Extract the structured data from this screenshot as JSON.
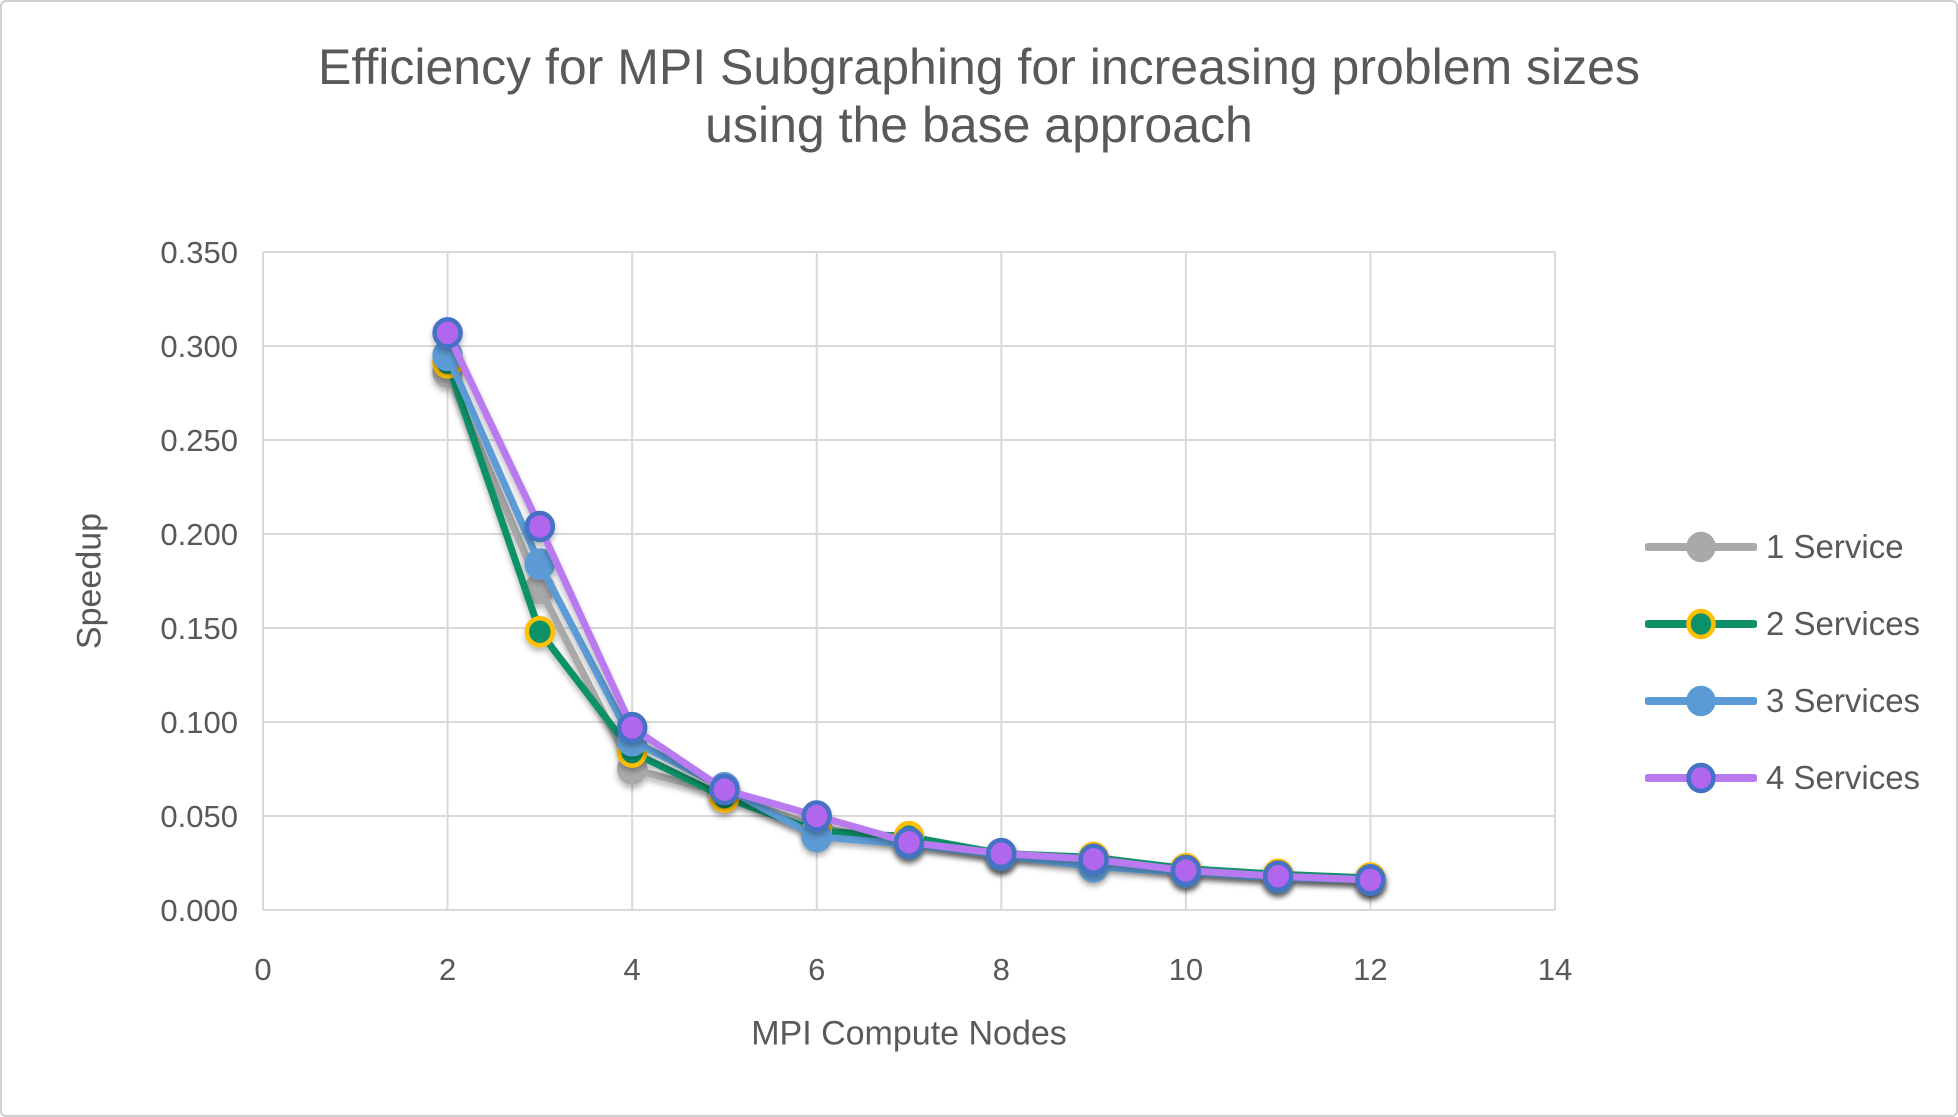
{
  "title_lines": [
    "Efficiency for MPI Subgraphing for increasing problem sizes",
    "using the base approach"
  ],
  "chart_data": {
    "type": "line",
    "title": "Efficiency for MPI Subgraphing for increasing problem sizes using the base approach",
    "xlabel": "MPI Compute Nodes",
    "ylabel": "Speedup",
    "xlim": [
      0,
      14
    ],
    "ylim": [
      0,
      0.35
    ],
    "grid": true,
    "legend_position": "right",
    "x_ticks": [
      "0",
      "2",
      "4",
      "6",
      "8",
      "10",
      "12",
      "14"
    ],
    "y_ticks": [
      "0.000",
      "0.050",
      "0.100",
      "0.150",
      "0.200",
      "0.250",
      "0.300",
      "0.350"
    ],
    "x": [
      2,
      3,
      4,
      5,
      6,
      7,
      8,
      9,
      10,
      11,
      12
    ],
    "series": [
      {
        "name": "1 Service",
        "line_color": "#a9a9a9",
        "marker_fill": "#a9a9a9",
        "marker_ring": "#a9a9a9",
        "values": [
          0.286,
          0.171,
          0.075,
          0.062,
          0.044,
          0.036,
          0.029,
          0.026,
          0.021,
          0.018,
          0.016
        ]
      },
      {
        "name": "2 Services",
        "line_color": "#0e9168",
        "marker_fill": "#0e9168",
        "marker_ring": "#ffc000",
        "values": [
          0.291,
          0.148,
          0.084,
          0.06,
          0.042,
          0.039,
          0.03,
          0.028,
          0.022,
          0.019,
          0.017
        ]
      },
      {
        "name": "3 Services",
        "line_color": "#5b9bd5",
        "marker_fill": "#5b9bd5",
        "marker_ring": "#5b9bd5",
        "values": [
          0.295,
          0.184,
          0.09,
          0.065,
          0.039,
          0.035,
          0.029,
          0.023,
          0.02,
          0.017,
          0.016
        ]
      },
      {
        "name": "4 Services",
        "line_color": "#b97af0",
        "marker_fill": "#b166ee",
        "marker_ring": "#4472c4",
        "values": [
          0.307,
          0.204,
          0.097,
          0.064,
          0.05,
          0.036,
          0.03,
          0.027,
          0.021,
          0.018,
          0.016
        ]
      }
    ]
  },
  "style": {
    "text_color": "#595959",
    "grid_color": "#d9d9d9",
    "background": "#ffffff"
  }
}
